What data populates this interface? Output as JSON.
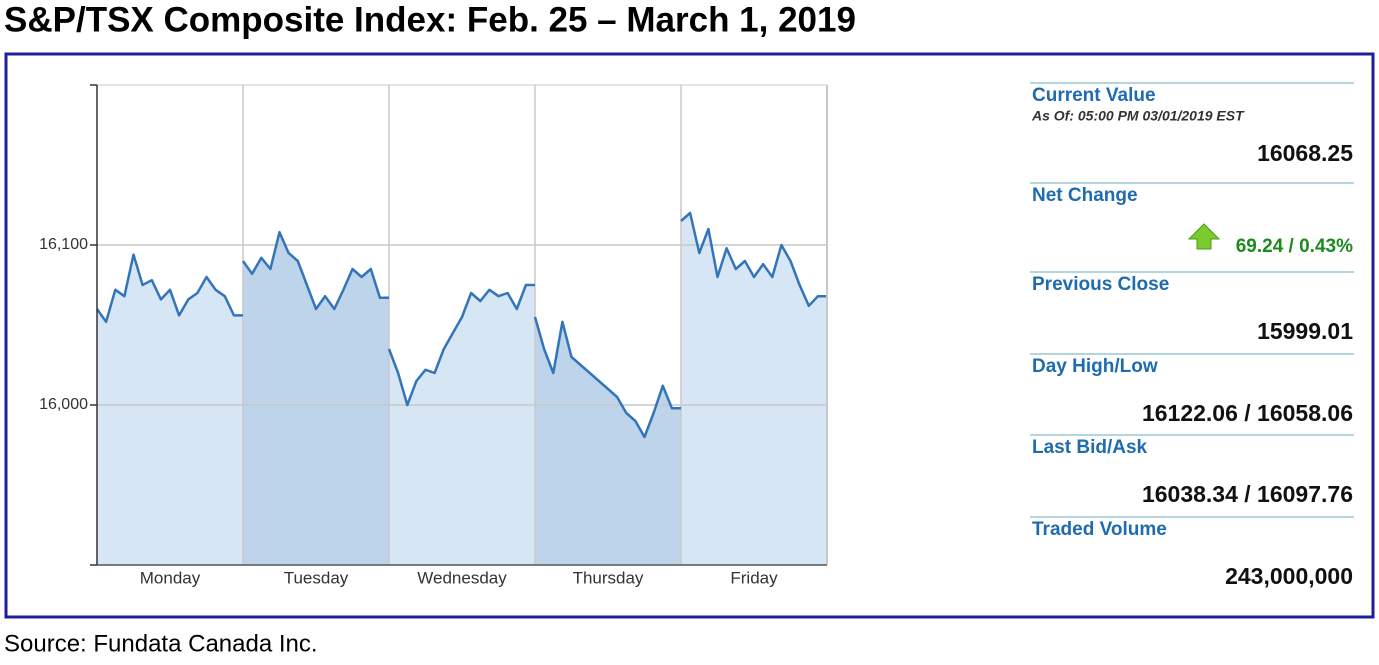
{
  "title": "S&P/TSX Composite Index: Feb. 25 – March 1, 2019",
  "source": "Source: Fundata Canada Inc.",
  "chart_data": {
    "type": "intraday-line",
    "ylim": [
      15900,
      16200
    ],
    "yticks": [
      {
        "value": 16000,
        "label": "16,000"
      },
      {
        "value": 16100,
        "label": "16,100"
      }
    ],
    "grid": true,
    "line_color": "#3474b8",
    "band_colors": [
      "#d6e6f5",
      "#bdd4ea"
    ],
    "days": [
      {
        "label": "Monday",
        "values": [
          16060,
          16052,
          16072,
          16068,
          16094,
          16075,
          16078,
          16066,
          16072,
          16056,
          16066,
          16070,
          16080,
          16072,
          16068,
          16056,
          16056
        ]
      },
      {
        "label": "Tuesday",
        "values": [
          16090,
          16082,
          16092,
          16085,
          16108,
          16095,
          16090,
          16075,
          16060,
          16068,
          16060,
          16072,
          16085,
          16080,
          16085,
          16067,
          16067
        ]
      },
      {
        "label": "Wednesday",
        "values": [
          16035,
          16020,
          16000,
          16015,
          16022,
          16020,
          16035,
          16045,
          16055,
          16070,
          16065,
          16072,
          16068,
          16070,
          16060,
          16075,
          16075
        ]
      },
      {
        "label": "Thursday",
        "values": [
          16055,
          16035,
          16020,
          16052,
          16030,
          16025,
          16020,
          16015,
          16010,
          16005,
          15995,
          15990,
          15980,
          15995,
          16012,
          15998,
          15998
        ]
      },
      {
        "label": "Friday",
        "values": [
          16115,
          16120,
          16095,
          16110,
          16080,
          16098,
          16085,
          16090,
          16080,
          16088,
          16080,
          16100,
          16090,
          16075,
          16062,
          16068,
          16068
        ]
      }
    ]
  },
  "panel": [
    {
      "label": "Current Value",
      "note": "As Of: 05:00 PM 03/01/2019 EST",
      "value": "16068.25"
    },
    {
      "label": "Net Change",
      "value": "69.24 / 0.43%",
      "direction": "up"
    },
    {
      "label": "Previous Close",
      "value": "15999.01"
    },
    {
      "label": "Day High/Low",
      "value": "16122.06 / 16058.06"
    },
    {
      "label": "Last Bid/Ask",
      "value": "16038.34 / 16097.76"
    },
    {
      "label": "Traded Volume",
      "value": "243,000,000"
    }
  ]
}
